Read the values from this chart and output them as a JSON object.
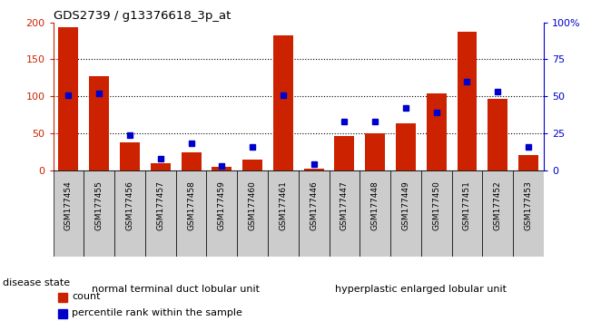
{
  "title": "GDS2739 / g13376618_3p_at",
  "samples": [
    "GSM177454",
    "GSM177455",
    "GSM177456",
    "GSM177457",
    "GSM177458",
    "GSM177459",
    "GSM177460",
    "GSM177461",
    "GSM177446",
    "GSM177447",
    "GSM177448",
    "GSM177449",
    "GSM177450",
    "GSM177451",
    "GSM177452",
    "GSM177453"
  ],
  "counts": [
    193,
    127,
    37,
    9,
    24,
    5,
    14,
    182,
    2,
    46,
    50,
    63,
    104,
    188,
    97,
    20
  ],
  "percentiles": [
    51,
    52,
    24,
    8,
    18,
    3,
    16,
    51,
    4,
    33,
    33,
    42,
    39,
    60,
    53,
    16
  ],
  "group1_label": "normal terminal duct lobular unit",
  "group2_label": "hyperplastic enlarged lobular unit",
  "group1_count": 8,
  "group2_count": 8,
  "disease_state_label": "disease state",
  "legend_count": "count",
  "legend_percentile": "percentile rank within the sample",
  "bar_color": "#cc2200",
  "dot_color": "#0000cc",
  "group1_bg": "#aaf0aa",
  "group2_bg": "#44dd44",
  "xtick_bg": "#cccccc",
  "ylim_left": [
    0,
    200
  ],
  "ylim_right": [
    0,
    100
  ],
  "yticks_left": [
    0,
    50,
    100,
    150,
    200
  ],
  "yticks_right": [
    0,
    25,
    50,
    75,
    100
  ],
  "ytick_labels_right": [
    "0",
    "25",
    "50",
    "75",
    "100%"
  ],
  "grid_levels": [
    50,
    100,
    150
  ],
  "bar_width": 0.65
}
